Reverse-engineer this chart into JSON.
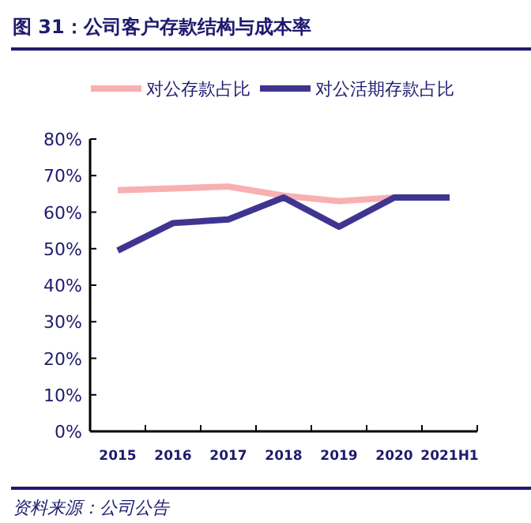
{
  "chart_data": {
    "type": "line",
    "title": "图 31：公司客户存款结构与成本率",
    "categories": [
      "2015",
      "2016",
      "2017",
      "2018",
      "2019",
      "2020",
      "2021H1"
    ],
    "series": [
      {
        "name": "对公存款占比",
        "color": "#f8b0b2",
        "values": [
          66,
          66.5,
          67,
          64.5,
          63,
          64,
          null
        ]
      },
      {
        "name": "对公活期存款占比",
        "color": "#3f3590",
        "values": [
          49.5,
          57,
          58,
          64,
          56,
          64,
          64
        ]
      }
    ],
    "ylim": [
      0,
      80
    ],
    "yticks": [
      {
        "value": 0,
        "label": "0%"
      },
      {
        "value": 10,
        "label": "10%"
      },
      {
        "value": 20,
        "label": "20%"
      },
      {
        "value": 30,
        "label": "30%"
      },
      {
        "value": 40,
        "label": "40%"
      },
      {
        "value": 50,
        "label": "50%"
      },
      {
        "value": 60,
        "label": "60%"
      },
      {
        "value": 70,
        "label": "70%"
      },
      {
        "value": 80,
        "label": "80%"
      }
    ],
    "legend": "top",
    "annotations": [
      "资料来源：公司公告"
    ]
  }
}
